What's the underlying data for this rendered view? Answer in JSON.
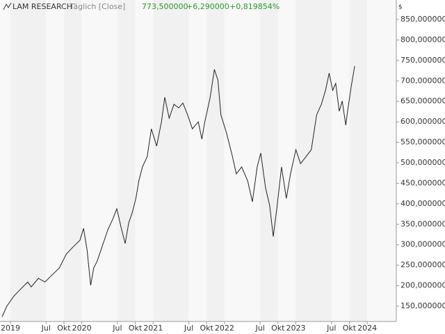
{
  "chart_data": {
    "type": "line",
    "title": "LAM RESEARCH",
    "subtitle": "Täglich [Close]",
    "last_price": "773,500000",
    "change": "+6,290000",
    "change_pct": "+0,819854%",
    "y_unit": "$",
    "xlim": [
      -1.75,
      64.9
    ],
    "ylim": [
      112.6,
      897.6
    ],
    "xticks": [
      {
        "value": 0,
        "label": "2019"
      },
      {
        "value": 6,
        "label": "Jul"
      },
      {
        "value": 9,
        "label": "Okt"
      },
      {
        "value": 12,
        "label": "2020"
      },
      {
        "value": 18,
        "label": "Jul"
      },
      {
        "value": 21,
        "label": "Okt"
      },
      {
        "value": 24,
        "label": "2021"
      },
      {
        "value": 30,
        "label": "Jul"
      },
      {
        "value": 33,
        "label": "Okt"
      },
      {
        "value": 36,
        "label": "2022"
      },
      {
        "value": 42,
        "label": "Jul"
      },
      {
        "value": 45,
        "label": "Okt"
      },
      {
        "value": 48,
        "label": "2023"
      },
      {
        "value": 54,
        "label": "Jul"
      },
      {
        "value": 57,
        "label": "Okt"
      },
      {
        "value": 60,
        "label": "2024"
      }
    ],
    "yticks": [
      {
        "value": 150,
        "label": "150,000000"
      },
      {
        "value": 200,
        "label": "200,000000"
      },
      {
        "value": 250,
        "label": "250,000000"
      },
      {
        "value": 300,
        "label": "300,000000"
      },
      {
        "value": 350,
        "label": "350,000000"
      },
      {
        "value": 400,
        "label": "400,000000"
      },
      {
        "value": 450,
        "label": "450,000000"
      },
      {
        "value": 500,
        "label": "500,000000"
      },
      {
        "value": 550,
        "label": "550,000000"
      },
      {
        "value": 600,
        "label": "600,000000"
      },
      {
        "value": 650,
        "label": "650,000000"
      },
      {
        "value": 700,
        "label": "700,000000"
      },
      {
        "value": 750,
        "label": "750,000000"
      },
      {
        "value": 800,
        "label": "800,000000"
      },
      {
        "value": 850,
        "label": "850,000000"
      }
    ],
    "series": [
      {
        "color": "#222222",
        "x": [
          -1.4,
          -0.6,
          0.6,
          1.75,
          2.9,
          3.5,
          4.7,
          5.8,
          7.0,
          8.2,
          9.4,
          10.5,
          11.7,
          12.3,
          12.9,
          13.5,
          14.0,
          14.6,
          15.6,
          16.4,
          17.2,
          17.9,
          18.7,
          19.3,
          19.9,
          20.5,
          21.1,
          21.6,
          22.2,
          23.0,
          23.7,
          24.6,
          25.4,
          25.96,
          26.7,
          27.5,
          28.3,
          29.0,
          29.8,
          30.6,
          31.6,
          32.2,
          32.7,
          33.6,
          34.3,
          34.9,
          35.4,
          36.3,
          37.2,
          38.0,
          38.9,
          39.9,
          40.7,
          41.5,
          42.1,
          42.9,
          43.6,
          44.2,
          44.8,
          45.6,
          46.4,
          47.1,
          48.0,
          48.8,
          49.7,
          50.6,
          51.5,
          52.3,
          53.0,
          53.6,
          54.2,
          54.7,
          55.3,
          55.8,
          56.4,
          56.7,
          57.3,
          57.7,
          57.9
        ],
        "values": [
          124,
          150,
          175,
          192,
          209,
          197,
          218,
          209,
          226,
          243,
          277,
          294,
          311,
          340,
          286,
          201,
          243,
          260,
          303,
          337,
          362,
          388,
          337,
          303,
          354,
          379,
          413,
          456,
          490,
          515,
          583,
          541,
          600,
          660,
          609,
          643,
          634,
          646,
          617,
          583,
          600,
          558,
          600,
          660,
          728,
          702,
          617,
          575,
          524,
          473,
          490,
          456,
          405,
          490,
          524,
          439,
          396,
          320,
          388,
          490,
          413,
          473,
          532,
          498,
          515,
          532,
          617,
          643,
          677,
          719,
          677,
          694,
          626,
          651,
          592,
          626,
          685,
          719,
          736
        ]
      }
    ]
  }
}
